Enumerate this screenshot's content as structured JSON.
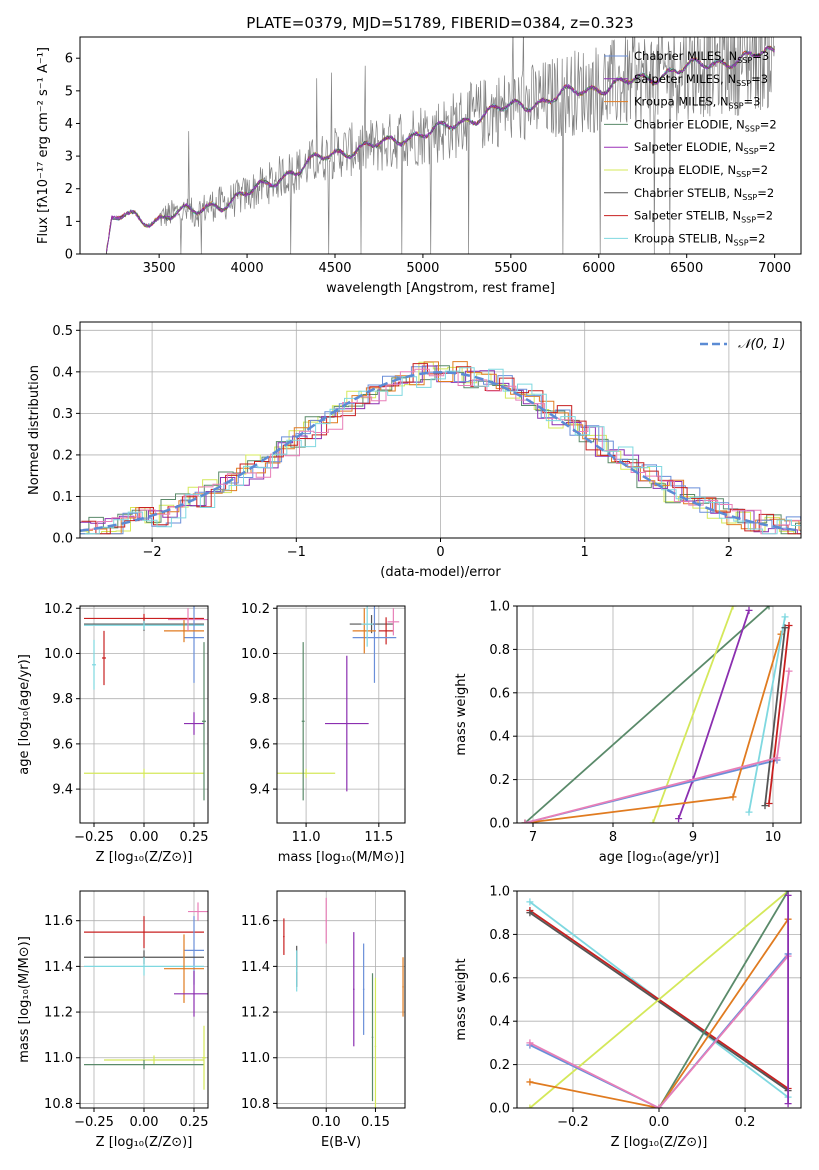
{
  "figure": {
    "title": "PLATE=0379, MJD=51789, FIBERID=0384, z=0.323"
  },
  "colors": {
    "chabrier_miles": "#6a8fd9",
    "salpeter_miles": "#8b2fb0",
    "kroupa_miles": "#e07b20",
    "chabrier_elodie": "#5a8a6a",
    "salpeter_elodie": "#9b30b8",
    "kroupa_elodie": "#d4e85a",
    "chabrier_stelib": "#555555",
    "salpeter_stelib": "#c82020",
    "kroupa_stelib": "#7fd8e0",
    "pink": "#e87fb8",
    "normal_dash": "#5b8bd4",
    "observed": "#808080"
  },
  "chart_data": [
    {
      "id": "spectrum",
      "type": "line",
      "xlabel": "wavelength [Angstrom, rest frame]",
      "ylabel": "Flux [fλ10⁻¹⁷ erg cm⁻² s⁻¹ A⁻¹]",
      "xlim": [
        3050,
        7150
      ],
      "ylim": [
        0,
        6.65
      ],
      "xticks": [
        3500,
        4000,
        4500,
        5000,
        5500,
        6000,
        6500,
        7000
      ],
      "yticks": [
        0,
        1,
        2,
        3,
        4,
        5,
        6
      ],
      "legend_position": "top-right",
      "legend": [
        {
          "label": "Chabrier MILES, N",
          "sub": "SSP",
          "suffix": "=3",
          "color_key": "chabrier_miles"
        },
        {
          "label": "Salpeter MILES, N",
          "sub": "SSP",
          "suffix": "=3",
          "color_key": "salpeter_miles"
        },
        {
          "label": "Kroupa MILES, N",
          "sub": "SSP",
          "suffix": "=3",
          "color_key": "kroupa_miles"
        },
        {
          "label": "Chabrier ELODIE, N",
          "sub": "SSP",
          "suffix": "=2",
          "color_key": "chabrier_elodie"
        },
        {
          "label": "Salpeter ELODIE, N",
          "sub": "SSP",
          "suffix": "=2",
          "color_key": "salpeter_elodie"
        },
        {
          "label": "Kroupa ELODIE, N",
          "sub": "SSP",
          "suffix": "=2",
          "color_key": "kroupa_elodie"
        },
        {
          "label": "Chabrier STELIB, N",
          "sub": "SSP",
          "suffix": "=2",
          "color_key": "chabrier_stelib"
        },
        {
          "label": "Salpeter STELIB, N",
          "sub": "SSP",
          "suffix": "=2",
          "color_key": "salpeter_stelib"
        },
        {
          "label": "Kroupa STELIB, N",
          "sub": "SSP",
          "suffix": "=2",
          "color_key": "kroupa_stelib"
        }
      ],
      "model_continuum": {
        "x": [
          3200,
          3300,
          3400,
          3500,
          3600,
          3700,
          3800,
          3900,
          4000,
          4100,
          4200,
          4300,
          4400,
          4500,
          4600,
          4700,
          4800,
          4900,
          5000,
          5100,
          5200,
          5300,
          5400,
          5500,
          5600,
          5700,
          5800,
          5900,
          6000,
          6100,
          6200,
          6300,
          6400,
          6500,
          6600,
          6700,
          6800,
          6900,
          7000
        ],
        "y": [
          0.9,
          1.2,
          1.0,
          1.1,
          1.3,
          1.25,
          1.5,
          1.6,
          1.85,
          2.1,
          2.4,
          2.6,
          2.9,
          3.1,
          3.2,
          3.3,
          3.4,
          3.6,
          3.7,
          3.8,
          4.0,
          4.2,
          4.4,
          4.5,
          4.6,
          4.7,
          4.9,
          5.0,
          5.1,
          5.2,
          5.3,
          5.4,
          5.6,
          5.7,
          5.8,
          5.9,
          5.95,
          6.1,
          6.2
        ]
      }
    },
    {
      "id": "residuals",
      "type": "bar",
      "xlabel": "(data-model)/error",
      "ylabel": "Normed distribution",
      "xlim": [
        -2.5,
        2.5
      ],
      "ylim": [
        0,
        0.52
      ],
      "xticks": [
        -2,
        -1,
        0,
        1,
        2
      ],
      "yticks": [
        0.0,
        0.1,
        0.2,
        0.3,
        0.4,
        0.5
      ],
      "grid": true,
      "legend_position": "top-right",
      "legend": [
        {
          "label": "𝒩(0, 1)",
          "color_key": "normal_dash",
          "style": "dashed"
        }
      ],
      "bin_width": 0.1
    },
    {
      "id": "age_vs_Z",
      "type": "scatter",
      "xlabel": "Z [log₁₀(Z/Z⊙)]",
      "ylabel": "age [log₁₀(age/yr)]",
      "xlim": [
        -0.32,
        0.32
      ],
      "ylim": [
        9.25,
        10.21
      ],
      "xticks": [
        -0.25,
        0.0,
        0.25
      ],
      "yticks": [
        9.4,
        9.6,
        9.8,
        10.0,
        10.2
      ],
      "points": [
        {
          "x": 0.0,
          "y": 10.13,
          "xerr": 0.3,
          "yerr": 0.03,
          "color_key": "chabrier_stelib"
        },
        {
          "x": 0.0,
          "y": 10.155,
          "xerr": 0.3,
          "yerr": 0.02,
          "color_key": "salpeter_stelib"
        },
        {
          "x": 0.0,
          "y": 10.125,
          "xerr": 0.3,
          "yerr": 0.02,
          "color_key": "kroupa_stelib"
        },
        {
          "x": 0.25,
          "y": 10.07,
          "xerr": 0.05,
          "yerr": 0.2,
          "color_key": "chabrier_miles"
        },
        {
          "x": 0.25,
          "y": 9.69,
          "xerr": 0.05,
          "yerr": 0.05,
          "color_key": "salpeter_miles"
        },
        {
          "x": 0.0,
          "y": 9.47,
          "xerr": 0.3,
          "yerr": 0.02,
          "color_key": "kroupa_elodie"
        },
        {
          "x": 0.2,
          "y": 10.1,
          "xerr": 0.1,
          "yerr": 0.05,
          "color_key": "kroupa_miles"
        },
        {
          "x": 0.3,
          "y": 9.7,
          "xerr": 0.01,
          "yerr": 0.35,
          "color_key": "chabrier_elodie"
        },
        {
          "x": 0.22,
          "y": 10.15,
          "xerr": 0.1,
          "yerr": 0.05,
          "color_key": "pink"
        },
        {
          "x": -0.25,
          "y": 9.95,
          "xerr": 0.01,
          "yerr": 0.11,
          "color_key": "kroupa_stelib"
        },
        {
          "x": -0.2,
          "y": 9.98,
          "xerr": 0.01,
          "yerr": 0.12,
          "color_key": "salpeter_stelib"
        }
      ]
    },
    {
      "id": "age_vs_mass",
      "type": "scatter",
      "xlabel": "mass [log₁₀(M/M⊙)]",
      "ylabel": "",
      "xlim": [
        10.8,
        11.68
      ],
      "ylim": [
        9.25,
        10.21
      ],
      "xticks": [
        11.0,
        11.5
      ],
      "yticks": [
        9.4,
        9.6,
        9.8,
        10.0,
        10.2
      ],
      "points": [
        {
          "x": 11.45,
          "y": 10.13,
          "xerr": 0.15,
          "yerr": 0.04,
          "color_key": "chabrier_stelib"
        },
        {
          "x": 11.55,
          "y": 10.1,
          "xerr": 0.05,
          "yerr": 0.06,
          "color_key": "salpeter_stelib"
        },
        {
          "x": 11.6,
          "y": 10.14,
          "xerr": 0.04,
          "yerr": 0.06,
          "color_key": "pink"
        },
        {
          "x": 11.47,
          "y": 10.07,
          "xerr": 0.15,
          "yerr": 0.2,
          "color_key": "chabrier_miles"
        },
        {
          "x": 11.28,
          "y": 9.69,
          "xerr": 0.15,
          "yerr": 0.3,
          "color_key": "salpeter_miles"
        },
        {
          "x": 11.0,
          "y": 9.47,
          "xerr": 0.2,
          "yerr": 0.02,
          "color_key": "kroupa_elodie"
        },
        {
          "x": 11.4,
          "y": 10.1,
          "xerr": 0.08,
          "yerr": 0.1,
          "color_key": "kroupa_miles"
        },
        {
          "x": 10.98,
          "y": 9.7,
          "xerr": 0.01,
          "yerr": 0.35,
          "color_key": "chabrier_elodie"
        },
        {
          "x": 11.42,
          "y": 10.13,
          "xerr": 0.04,
          "yerr": 0.1,
          "color_key": "kroupa_stelib"
        }
      ]
    },
    {
      "id": "mass_weight_vs_age",
      "type": "line",
      "xlabel": "age [log₁₀(age/yr)]",
      "ylabel": "mass weight",
      "xlim": [
        6.8,
        10.35
      ],
      "ylim": [
        0,
        1.0
      ],
      "xticks": [
        7,
        8,
        9,
        10
      ],
      "yticks": [
        0.0,
        0.2,
        0.4,
        0.6,
        0.8,
        1.0
      ],
      "series": [
        {
          "color_key": "chabrier_elodie",
          "x": [
            6.9,
            9.95
          ],
          "y": [
            0.0,
            1.0
          ]
        },
        {
          "color_key": "kroupa_elodie",
          "x": [
            8.5,
            9.5
          ],
          "y": [
            0.0,
            1.0
          ]
        },
        {
          "color_key": "salpeter_miles",
          "x": [
            8.82,
            9.0,
            9.7
          ],
          "y": [
            0.02,
            0.2,
            0.98
          ]
        },
        {
          "color_key": "chabrier_miles",
          "x": [
            6.9,
            10.05
          ],
          "y": [
            0.0,
            0.29
          ]
        },
        {
          "color_key": "kroupa_miles",
          "x": [
            6.9,
            9.5,
            10.1
          ],
          "y": [
            0.0,
            0.12,
            0.87
          ]
        },
        {
          "color_key": "kroupa_stelib",
          "x": [
            9.7,
            10.15
          ],
          "y": [
            0.05,
            0.95
          ]
        },
        {
          "color_key": "salpeter_stelib",
          "x": [
            9.95,
            10.2
          ],
          "y": [
            0.09,
            0.91
          ]
        },
        {
          "color_key": "chabrier_stelib",
          "x": [
            9.9,
            10.15
          ],
          "y": [
            0.08,
            0.9
          ]
        },
        {
          "color_key": "pink",
          "x": [
            6.9,
            10.05,
            10.2
          ],
          "y": [
            0.0,
            0.3,
            0.7
          ]
        }
      ]
    },
    {
      "id": "mass_vs_Z",
      "type": "scatter",
      "xlabel": "Z [log₁₀(Z/Z⊙)]",
      "ylabel": "mass [log₁₀(M/M⊙)]",
      "xlim": [
        -0.32,
        0.32
      ],
      "ylim": [
        10.78,
        11.73
      ],
      "xticks": [
        -0.25,
        0.0,
        0.25
      ],
      "yticks": [
        10.8,
        11.0,
        11.2,
        11.4,
        11.6
      ],
      "points": [
        {
          "x": 0.0,
          "y": 11.55,
          "xerr": 0.3,
          "yerr": 0.07,
          "color_key": "salpeter_stelib"
        },
        {
          "x": 0.27,
          "y": 11.64,
          "xerr": 0.05,
          "yerr": 0.04,
          "color_key": "pink"
        },
        {
          "x": 0.25,
          "y": 11.47,
          "xerr": 0.05,
          "yerr": 0.15,
          "color_key": "chabrier_miles"
        },
        {
          "x": 0.0,
          "y": 11.44,
          "xerr": 0.3,
          "yerr": 0.03,
          "color_key": "chabrier_stelib"
        },
        {
          "x": 0.0,
          "y": 11.4,
          "xerr": 0.3,
          "yerr": 0.04,
          "color_key": "kroupa_stelib"
        },
        {
          "x": 0.2,
          "y": 11.39,
          "xerr": 0.1,
          "yerr": 0.15,
          "color_key": "kroupa_miles"
        },
        {
          "x": 0.25,
          "y": 11.28,
          "xerr": 0.1,
          "yerr": 0.1,
          "color_key": "salpeter_miles"
        },
        {
          "x": 0.05,
          "y": 10.99,
          "xerr": 0.25,
          "yerr": 0.02,
          "color_key": "kroupa_elodie"
        },
        {
          "x": 0.0,
          "y": 10.97,
          "xerr": 0.3,
          "yerr": 0.02,
          "color_key": "chabrier_elodie"
        },
        {
          "x": 0.3,
          "y": 11.0,
          "xerr": 0.01,
          "yerr": 0.14,
          "color_key": "kroupa_elodie"
        }
      ]
    },
    {
      "id": "mass_vs_EBV",
      "type": "scatter",
      "xlabel": "E(B-V)",
      "ylabel": "",
      "xlim": [
        0.05,
        0.18
      ],
      "ylim": [
        10.78,
        11.73
      ],
      "xticks": [
        0.1,
        0.15
      ],
      "yticks": [
        10.8,
        11.0,
        11.2,
        11.4,
        11.6
      ],
      "points": [
        {
          "x": 0.057,
          "y": 11.53,
          "yerr": 0.08,
          "color_key": "salpeter_stelib"
        },
        {
          "x": 0.07,
          "y": 11.4,
          "yerr": 0.09,
          "color_key": "chabrier_stelib"
        },
        {
          "x": 0.07,
          "y": 11.38,
          "yerr": 0.09,
          "color_key": "kroupa_stelib"
        },
        {
          "x": 0.1,
          "y": 11.6,
          "yerr": 0.1,
          "color_key": "pink"
        },
        {
          "x": 0.128,
          "y": 11.3,
          "yerr": 0.25,
          "color_key": "salpeter_miles"
        },
        {
          "x": 0.138,
          "y": 11.3,
          "yerr": 0.2,
          "color_key": "chabrier_miles"
        },
        {
          "x": 0.147,
          "y": 11.09,
          "yerr": 0.28,
          "color_key": "chabrier_elodie"
        },
        {
          "x": 0.15,
          "y": 11.05,
          "yerr": 0.3,
          "color_key": "kroupa_elodie"
        },
        {
          "x": 0.178,
          "y": 11.31,
          "yerr": 0.13,
          "color_key": "kroupa_miles"
        }
      ]
    },
    {
      "id": "mass_weight_vs_Z",
      "type": "line",
      "xlabel": "Z [log₁₀(Z/Z⊙)]",
      "ylabel": "mass weight",
      "xlim": [
        -0.33,
        0.33
      ],
      "ylim": [
        0,
        1.0
      ],
      "xticks": [
        -0.2,
        0.0,
        0.2
      ],
      "yticks": [
        0.0,
        0.2,
        0.4,
        0.6,
        0.8,
        1.0
      ],
      "series": [
        {
          "color_key": "kroupa_stelib",
          "x": [
            -0.3,
            0.3
          ],
          "y": [
            0.95,
            0.05
          ]
        },
        {
          "color_key": "salpeter_stelib",
          "x": [
            -0.3,
            0.3
          ],
          "y": [
            0.91,
            0.09
          ]
        },
        {
          "color_key": "chabrier_stelib",
          "x": [
            -0.3,
            0.3
          ],
          "y": [
            0.9,
            0.08
          ]
        },
        {
          "color_key": "kroupa_elodie",
          "x": [
            -0.3,
            0.3
          ],
          "y": [
            0.0,
            1.0
          ]
        },
        {
          "color_key": "chabrier_elodie",
          "x": [
            0.0,
            0.3
          ],
          "y": [
            0.0,
            1.0
          ]
        },
        {
          "color_key": "kroupa_miles",
          "x": [
            -0.3,
            0.0,
            0.3
          ],
          "y": [
            0.12,
            0.0,
            0.87
          ]
        },
        {
          "color_key": "chabrier_miles",
          "x": [
            -0.3,
            0.0,
            0.3
          ],
          "y": [
            0.29,
            0.0,
            0.71
          ]
        },
        {
          "color_key": "pink",
          "x": [
            -0.3,
            0.0,
            0.3
          ],
          "y": [
            0.3,
            0.0,
            0.7
          ]
        },
        {
          "color_key": "salpeter_miles",
          "x": [
            0.3,
            0.3
          ],
          "y": [
            0.02,
            0.98
          ]
        }
      ]
    }
  ]
}
